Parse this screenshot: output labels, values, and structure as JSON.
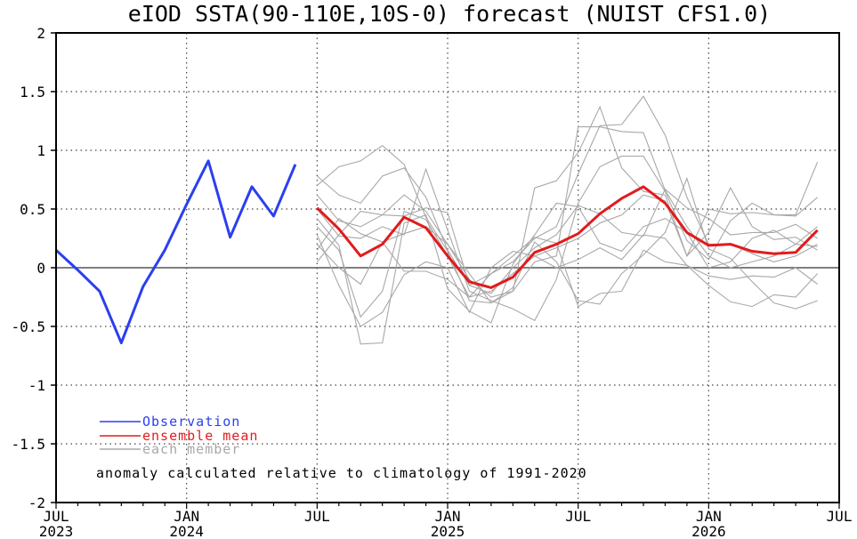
{
  "chart_data": {
    "type": "line",
    "title": "eIOD SSTA(90-110E,10S-0) forecast (NUIST CFS1.0)",
    "ylim": [
      -2,
      2
    ],
    "y_ticks": [
      "2",
      "1.5",
      "1",
      "0.5",
      "0",
      "-0.5",
      "-1",
      "-1.5",
      "-2"
    ],
    "x_ticks": [
      {
        "month": "JUL",
        "year": "2023"
      },
      {
        "month": "JAN",
        "year": "2024"
      },
      {
        "month": "JUL",
        "year": ""
      },
      {
        "month": "JAN",
        "year": "2025"
      },
      {
        "month": "JUL",
        "year": ""
      },
      {
        "month": "JAN",
        "year": "2026"
      },
      {
        "month": "JUL",
        "year": ""
      }
    ],
    "grid": true,
    "colors": {
      "observation": "#2a3ff0",
      "ensemble_mean": "#e31a1c",
      "member": "#a8a8a8",
      "zero_line": "#555555"
    },
    "observation": {
      "name": "Observation",
      "x": [
        "2023-07",
        "2023-08",
        "2023-09",
        "2023-10",
        "2023-11",
        "2023-12",
        "2024-01",
        "2024-02",
        "2024-03",
        "2024-04",
        "2024-05",
        "2024-06"
      ],
      "values": [
        0.15,
        -0.02,
        -0.2,
        -0.64,
        -0.16,
        0.15,
        0.54,
        0.91,
        0.26,
        0.69,
        0.44,
        0.88
      ]
    },
    "ensemble_mean": {
      "name": "ensemble mean",
      "x": [
        "2024-07",
        "2024-08",
        "2024-09",
        "2024-10",
        "2024-11",
        "2024-12",
        "2025-01",
        "2025-02",
        "2025-03",
        "2025-04",
        "2025-05",
        "2025-06",
        "2025-07",
        "2025-08",
        "2025-09",
        "2025-10",
        "2025-11",
        "2025-12",
        "2026-01",
        "2026-02",
        "2026-03",
        "2026-04",
        "2026-05",
        "2026-06"
      ],
      "values": [
        0.51,
        0.33,
        0.1,
        0.2,
        0.43,
        0.34,
        0.1,
        -0.12,
        -0.17,
        -0.08,
        0.13,
        0.2,
        0.29,
        0.46,
        0.59,
        0.69,
        0.55,
        0.3,
        0.19,
        0.2,
        0.14,
        0.12,
        0.13,
        0.32
      ]
    },
    "members": {
      "name": "each member",
      "x_start": "2024-07",
      "series": [
        [
          0.78,
          0.62,
          0.55,
          0.78,
          0.85,
          0.6,
          0.15,
          -0.15,
          -0.05,
          0.05,
          0.25,
          0.35,
          0.8,
          1.21,
          1.22,
          1.46,
          1.13,
          0.6,
          0.2,
          0.2,
          0.12,
          0.05,
          0.1,
          0.2
        ],
        [
          0.7,
          0.86,
          0.91,
          1.04,
          0.88,
          0.43,
          0.14,
          -0.28,
          -0.3,
          -0.2,
          0.05,
          0.1,
          1.2,
          1.2,
          1.16,
          1.15,
          0.66,
          0.35,
          0.1,
          0.0,
          0.05,
          0.1,
          0.2,
          0.35
        ],
        [
          0.62,
          0.4,
          0.35,
          0.45,
          0.62,
          0.48,
          0.2,
          -0.1,
          -0.25,
          -0.2,
          0.68,
          0.74,
          0.98,
          1.37,
          0.85,
          0.65,
          0.62,
          0.1,
          0.5,
          0.46,
          0.47,
          0.45,
          0.44,
          0.6
        ],
        [
          0.5,
          0.27,
          0.25,
          0.35,
          0.28,
          0.84,
          0.32,
          -0.2,
          -0.28,
          -0.35,
          -0.45,
          -0.1,
          0.55,
          0.86,
          0.95,
          0.95,
          0.65,
          0.23,
          0.07,
          0.4,
          0.55,
          0.45,
          0.45,
          0.9
        ],
        [
          0.42,
          0.19,
          -0.65,
          -0.64,
          0.38,
          0.45,
          -0.18,
          -0.37,
          -0.47,
          0.03,
          0.28,
          0.55,
          0.52,
          0.21,
          0.14,
          0.35,
          0.42,
          0.3,
          0.0,
          0.05,
          0.25,
          0.32,
          0.2,
          0.18
        ],
        [
          0.35,
          0.15,
          -0.42,
          -0.2,
          0.48,
          0.41,
          0.1,
          -0.25,
          -0.2,
          -0.05,
          0.1,
          0.17,
          0.25,
          0.38,
          0.45,
          0.62,
          0.57,
          0.1,
          0.3,
          0.68,
          0.35,
          0.24,
          0.26,
          0.15
        ],
        [
          0.28,
          -0.15,
          -0.5,
          -0.38,
          -0.06,
          0.05,
          0.0,
          -0.38,
          0.0,
          0.14,
          0.1,
          0.0,
          0.07,
          0.17,
          0.07,
          0.28,
          0.25,
          0.02,
          -0.07,
          -0.1,
          -0.07,
          -0.08,
          0.0,
          -0.14
        ],
        [
          0.2,
          0.0,
          -0.14,
          0.22,
          -0.03,
          -0.03,
          -0.1,
          -0.25,
          -0.05,
          0.1,
          0.26,
          0.21,
          -0.33,
          -0.22,
          -0.2,
          0.15,
          0.05,
          0.02,
          -0.15,
          -0.29,
          -0.33,
          -0.23,
          -0.25,
          -0.05
        ],
        [
          0.15,
          0.42,
          0.29,
          0.22,
          0.29,
          0.35,
          0.2,
          -0.05,
          -0.3,
          -0.17,
          0.22,
          0.05,
          -0.28,
          -0.31,
          -0.05,
          0.11,
          0.3,
          0.76,
          0.16,
          0.08,
          -0.12,
          -0.3,
          -0.35,
          -0.28
        ],
        [
          0.05,
          0.28,
          0.48,
          0.45,
          0.44,
          0.51,
          0.47,
          -0.15,
          -0.22,
          0.0,
          0.17,
          0.28,
          0.53,
          0.46,
          0.3,
          0.27,
          0.67,
          0.51,
          0.42,
          0.28,
          0.3,
          0.3,
          0.37,
          0.25
        ]
      ]
    },
    "legend": [
      "Observation",
      "ensemble mean",
      "each member"
    ],
    "legend_position": "bottom-left",
    "annotation": "anomaly calculated relative to climatology of 1991-2020"
  }
}
